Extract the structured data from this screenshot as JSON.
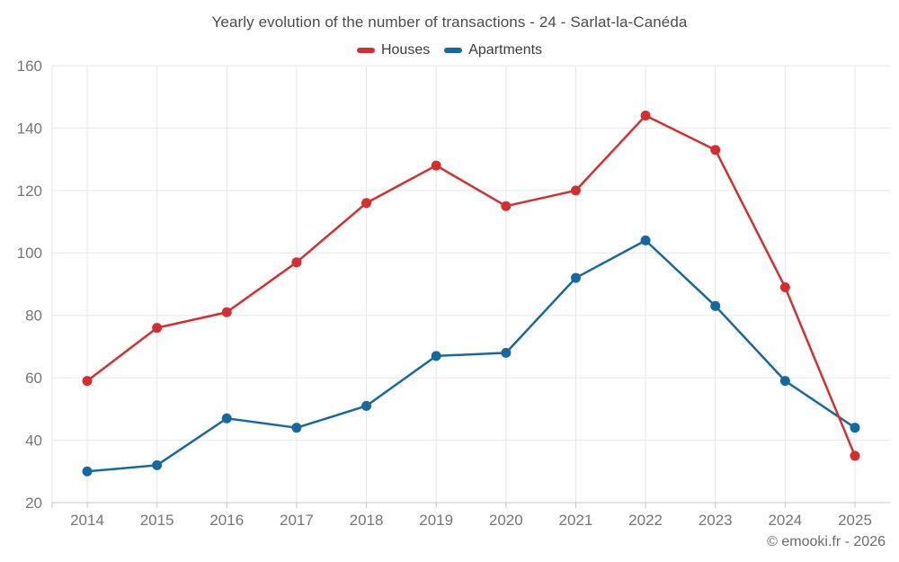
{
  "footer": "© emooki.fr - 2026",
  "colors": {
    "houses": "#d62e2e",
    "apartments": "#15699f",
    "title_text": "#4b4b4b",
    "axis_text": "#757575",
    "legend_text": "#3c3c3c",
    "footer_text": "#6b6b6b",
    "gridline": "#e7e7e7",
    "axis_line": "#c8c8c8",
    "background": "#ffffff"
  },
  "chart_data": {
    "type": "line",
    "title": "Yearly evolution of the number of transactions - 24 - Sarlat-la-Canéda",
    "categories": [
      "2014",
      "2015",
      "2016",
      "2017",
      "2018",
      "2019",
      "2020",
      "2021",
      "2022",
      "2023",
      "2024",
      "2025"
    ],
    "series": [
      {
        "name": "Houses",
        "color": "#d62e2e",
        "values": [
          59,
          76,
          81,
          97,
          116,
          128,
          115,
          120,
          144,
          133,
          89,
          35
        ]
      },
      {
        "name": "Apartments",
        "color": "#15699f",
        "values": [
          30,
          32,
          47,
          44,
          51,
          67,
          68,
          92,
          104,
          83,
          59,
          44
        ]
      }
    ],
    "xlabel": "",
    "ylabel": "",
    "ylim": [
      20,
      160
    ],
    "yticks": [
      20,
      40,
      60,
      80,
      100,
      120,
      140,
      160
    ],
    "grid": true,
    "legend_position": "top",
    "marker": "circle"
  }
}
